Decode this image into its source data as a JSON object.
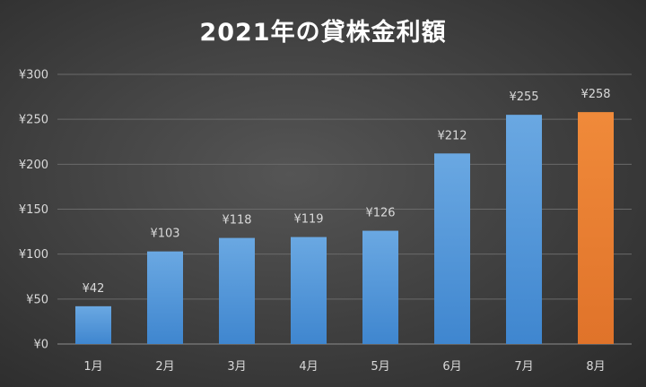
{
  "chart_data": {
    "type": "bar",
    "title": "2021年の貸株金利額",
    "categories": [
      "1月",
      "2月",
      "3月",
      "4月",
      "5月",
      "6月",
      "7月",
      "8月"
    ],
    "values": [
      42,
      103,
      118,
      119,
      126,
      212,
      255,
      258
    ],
    "data_labels": [
      "¥42",
      "¥103",
      "¥118",
      "¥119",
      "¥126",
      "¥212",
      "¥255",
      "¥258"
    ],
    "y_ticks": [
      0,
      50,
      100,
      150,
      200,
      250,
      300
    ],
    "y_tick_labels": [
      "¥0",
      "¥50",
      "¥100",
      "¥150",
      "¥200",
      "¥250",
      "¥300"
    ],
    "ylim": [
      0,
      300
    ],
    "xlabel": "",
    "ylabel": "",
    "grid": true,
    "legend": "none",
    "bar_colors": [
      "#5b9bd5",
      "#5b9bd5",
      "#5b9bd5",
      "#5b9bd5",
      "#5b9bd5",
      "#5b9bd5",
      "#5b9bd5",
      "#ed7d31"
    ]
  }
}
